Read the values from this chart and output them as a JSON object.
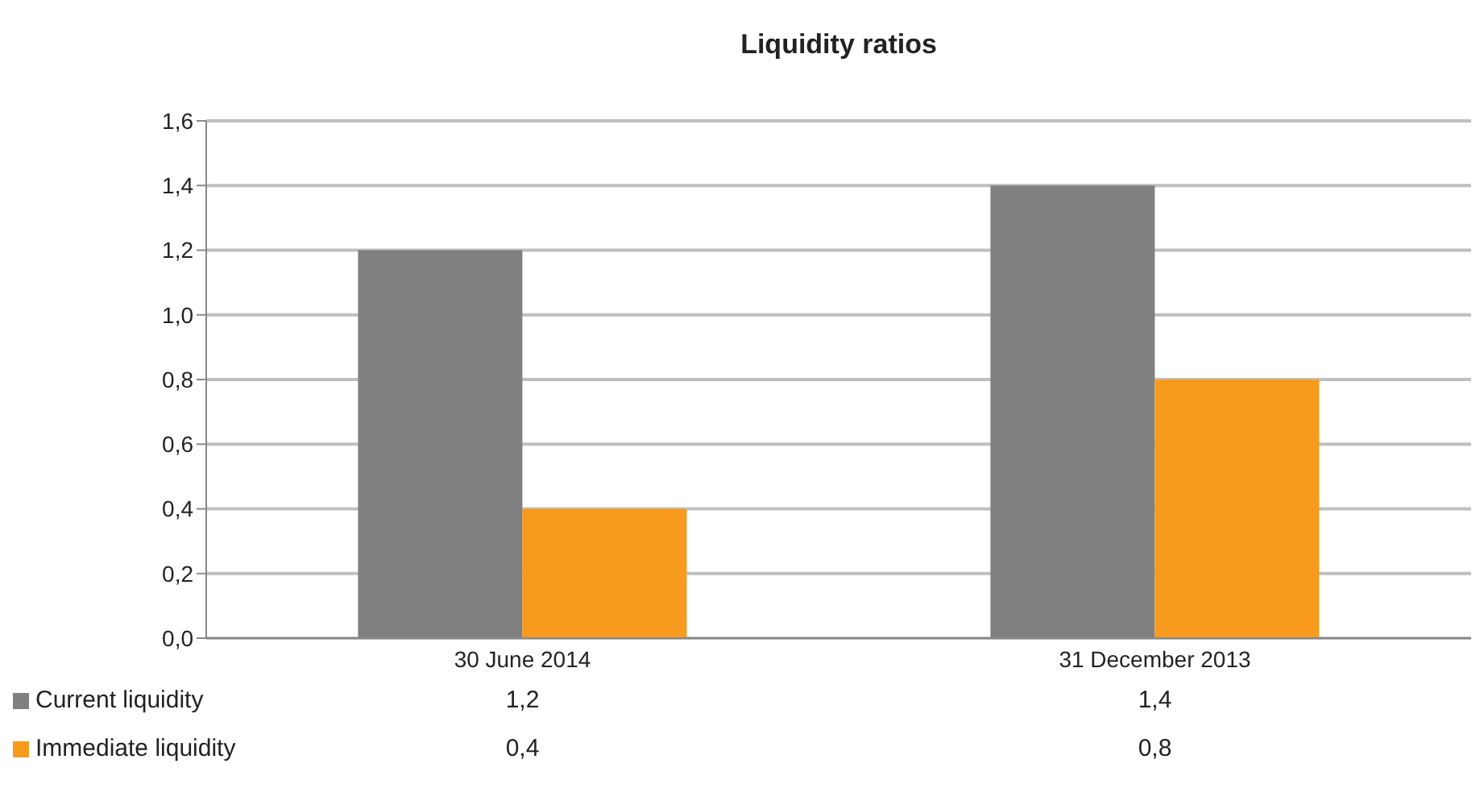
{
  "chart_data": {
    "type": "bar",
    "title": "Liquidity ratios",
    "categories": [
      "30 June 2014",
      "31 December 2013"
    ],
    "series": [
      {
        "name": "Current liquidity",
        "color": "#808080",
        "values": [
          1.2,
          1.4
        ],
        "value_labels": [
          "1,2",
          "1,4"
        ]
      },
      {
        "name": "Immediate liquidity",
        "color": "#f79a1e",
        "values": [
          0.4,
          0.8
        ],
        "value_labels": [
          "0,4",
          "0,8"
        ]
      }
    ],
    "ylim": [
      0,
      1.6
    ],
    "yticks": [
      {
        "value": 0,
        "label": "0,0"
      },
      {
        "value": 0.2,
        "label": "0,2"
      },
      {
        "value": 0.4,
        "label": "0,4"
      },
      {
        "value": 0.6,
        "label": "0,6"
      },
      {
        "value": 0.8,
        "label": "0,8"
      },
      {
        "value": 1.0,
        "label": "1,0"
      },
      {
        "value": 1.2,
        "label": "1,2"
      },
      {
        "value": 1.4,
        "label": "1,4"
      },
      {
        "value": 1.6,
        "label": "1,6"
      }
    ],
    "grid": "y",
    "legend": "bottom"
  }
}
